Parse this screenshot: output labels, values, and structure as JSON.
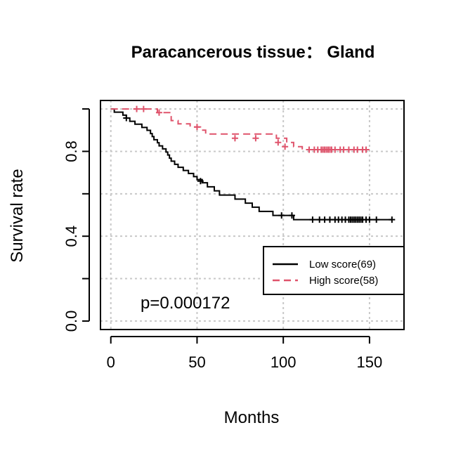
{
  "chart_data": {
    "type": "line",
    "title": "Paracancerous tissue： Gland",
    "xlabel": "Months",
    "ylabel": "Survival rate",
    "xlim": [
      -6,
      170
    ],
    "ylim": [
      -0.04,
      1.04
    ],
    "xticks": [
      0,
      50,
      100,
      150
    ],
    "yticks": [
      0.0,
      0.2,
      0.4,
      0.6,
      0.8,
      1.0
    ],
    "ytick_labels": [
      "0.0",
      "",
      "0.4",
      "",
      "0.8",
      ""
    ],
    "grid": true,
    "legend_position": "right",
    "annotation": "p=0.000172",
    "series": [
      {
        "name": "Low score(69)",
        "color": "#000000",
        "dash": "solid",
        "steps": [
          [
            0,
            1.0
          ],
          [
            2,
            0.985
          ],
          [
            7,
            0.971
          ],
          [
            9,
            0.957
          ],
          [
            11,
            0.942
          ],
          [
            14,
            0.928
          ],
          [
            18,
            0.913
          ],
          [
            21,
            0.899
          ],
          [
            23,
            0.884
          ],
          [
            24,
            0.87
          ],
          [
            25,
            0.855
          ],
          [
            27,
            0.841
          ],
          [
            28,
            0.826
          ],
          [
            30,
            0.812
          ],
          [
            32,
            0.797
          ],
          [
            33,
            0.783
          ],
          [
            34,
            0.768
          ],
          [
            35,
            0.754
          ],
          [
            37,
            0.739
          ],
          [
            39,
            0.725
          ],
          [
            42,
            0.71
          ],
          [
            45,
            0.696
          ],
          [
            48,
            0.681
          ],
          [
            50,
            0.667
          ],
          [
            53,
            0.652
          ],
          [
            56,
            0.633
          ],
          [
            60,
            0.614
          ],
          [
            63,
            0.594
          ],
          [
            72,
            0.575
          ],
          [
            78,
            0.556
          ],
          [
            82,
            0.537
          ],
          [
            86,
            0.517
          ],
          [
            94,
            0.498
          ],
          [
            100,
            0.498
          ],
          [
            106,
            0.478
          ],
          [
            163,
            0.478
          ]
        ],
        "censored": [
          [
            9,
            0.957
          ],
          [
            52,
            0.66
          ],
          [
            99,
            0.498
          ],
          [
            105,
            0.498
          ],
          [
            117,
            0.478
          ],
          [
            121,
            0.478
          ],
          [
            124,
            0.478
          ],
          [
            127,
            0.478
          ],
          [
            130,
            0.478
          ],
          [
            132,
            0.478
          ],
          [
            134,
            0.478
          ],
          [
            136,
            0.478
          ],
          [
            138,
            0.478
          ],
          [
            139,
            0.478
          ],
          [
            140,
            0.478
          ],
          [
            141,
            0.478
          ],
          [
            142,
            0.478
          ],
          [
            143,
            0.478
          ],
          [
            144,
            0.478
          ],
          [
            145,
            0.478
          ],
          [
            146,
            0.478
          ],
          [
            148,
            0.478
          ],
          [
            150,
            0.478
          ],
          [
            154,
            0.478
          ],
          [
            163,
            0.478
          ]
        ]
      },
      {
        "name": "High score(58)",
        "color": "#df536b",
        "dash": "dashed",
        "steps": [
          [
            0,
            1.0
          ],
          [
            27,
            0.983
          ],
          [
            35,
            0.945
          ],
          [
            39,
            0.93
          ],
          [
            46,
            0.915
          ],
          [
            52,
            0.9
          ],
          [
            55,
            0.882
          ],
          [
            96,
            0.862
          ],
          [
            102,
            0.842
          ],
          [
            106,
            0.822
          ],
          [
            111,
            0.808
          ],
          [
            150,
            0.808
          ]
        ],
        "censored": [
          [
            15,
            1.0
          ],
          [
            19,
            1.0
          ],
          [
            28,
            0.983
          ],
          [
            50,
            0.915
          ],
          [
            72,
            0.862
          ],
          [
            84,
            0.862
          ],
          [
            97,
            0.842
          ],
          [
            101,
            0.822
          ],
          [
            115,
            0.808
          ],
          [
            118,
            0.808
          ],
          [
            120,
            0.808
          ],
          [
            122,
            0.808
          ],
          [
            123,
            0.808
          ],
          [
            124,
            0.808
          ],
          [
            125,
            0.808
          ],
          [
            126,
            0.808
          ],
          [
            127,
            0.808
          ],
          [
            128,
            0.808
          ],
          [
            130,
            0.808
          ],
          [
            133,
            0.808
          ],
          [
            135,
            0.808
          ],
          [
            138,
            0.808
          ],
          [
            141,
            0.808
          ],
          [
            143,
            0.808
          ],
          [
            146,
            0.808
          ],
          [
            148,
            0.808
          ]
        ]
      }
    ]
  }
}
